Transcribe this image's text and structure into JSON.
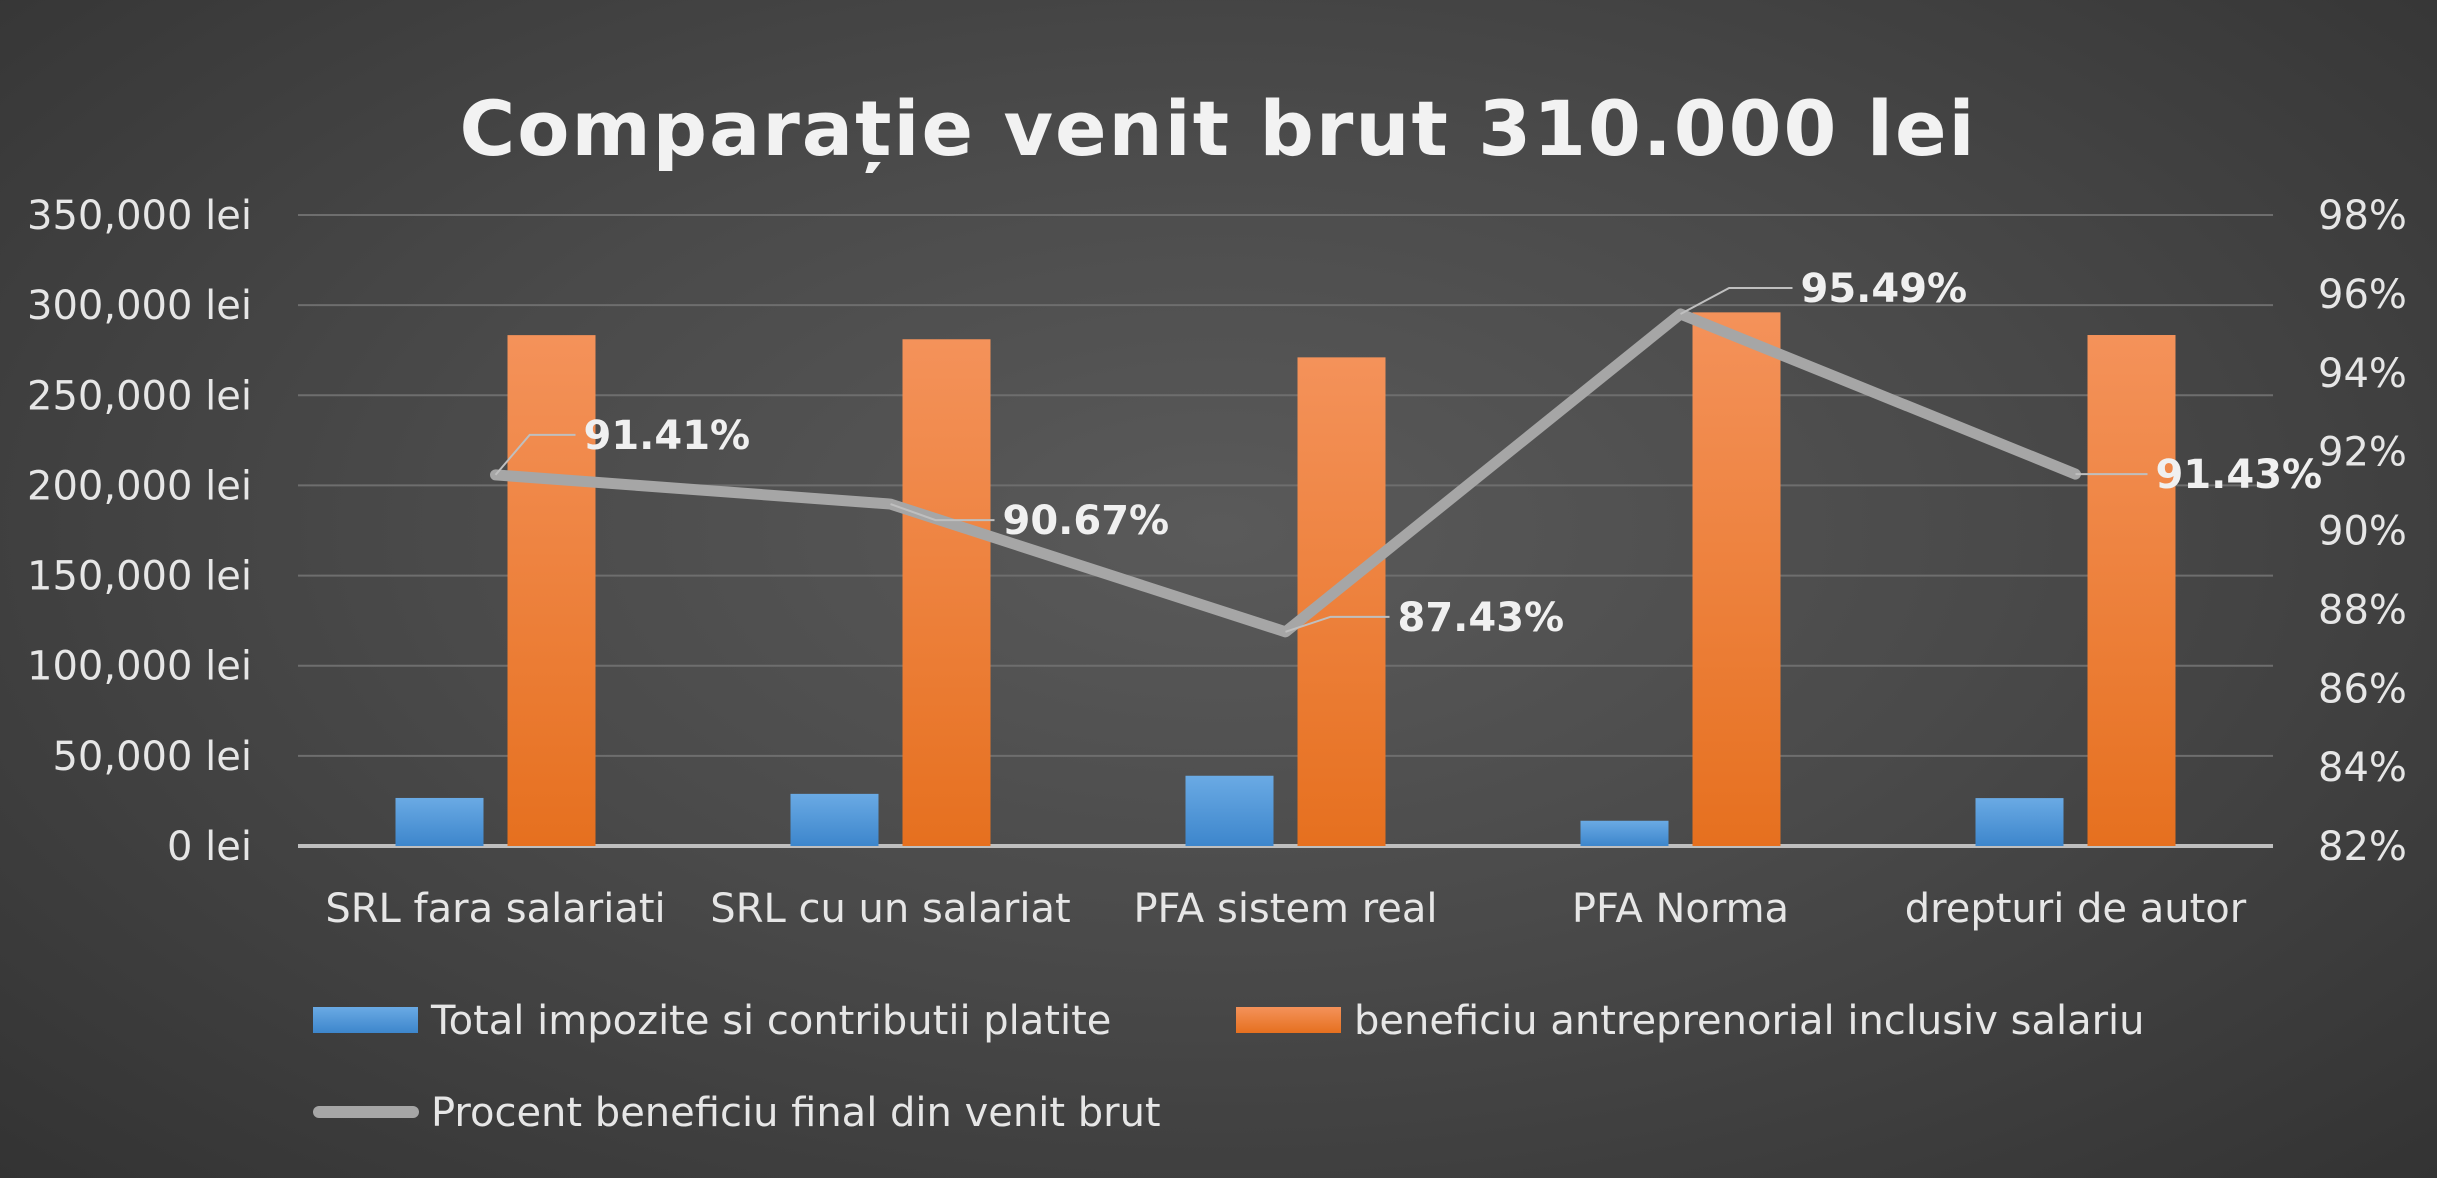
{
  "chart_data": {
    "type": "bar",
    "title": "Comparație venit brut 310.000 lei",
    "categories": [
      "SRL fara salariati",
      "SRL cu un salariat",
      "PFA sistem real",
      "PFA Norma",
      "drepturi de autor"
    ],
    "series": [
      {
        "name": "Total impozite si contributii platite",
        "type": "bar",
        "axis": "left",
        "color": "#5b9bd5",
        "values": [
          26650,
          28920,
          38960,
          14000,
          26570
        ]
      },
      {
        "name": "beneficiu antreprenorial inclusiv salariu",
        "type": "bar",
        "axis": "left",
        "color": "#ed7d31",
        "values": [
          283370,
          281080,
          271040,
          296000,
          283430
        ]
      },
      {
        "name": "Procent beneficiu final din venit brut",
        "type": "line",
        "axis": "right",
        "color": "#a6a6a6",
        "values": [
          91.41,
          90.67,
          87.43,
          95.49,
          91.43
        ],
        "labels": [
          "91.41%",
          "90.67%",
          "87.43%",
          "95.49%",
          "91.43%"
        ]
      }
    ],
    "y_left": {
      "min": 0,
      "max": 350000,
      "step": 50000,
      "tick_labels": [
        "0 lei",
        "50,000 lei",
        "100,000 lei",
        "150,000 lei",
        "200,000 lei",
        "250,000 lei",
        "300,000 lei",
        "350,000 lei"
      ]
    },
    "y_right": {
      "min": 82,
      "max": 98,
      "step": 2,
      "tick_labels": [
        "82%",
        "84%",
        "86%",
        "88%",
        "90%",
        "92%",
        "94%",
        "96%",
        "98%"
      ]
    },
    "grid": true,
    "legend_position": "bottom"
  }
}
